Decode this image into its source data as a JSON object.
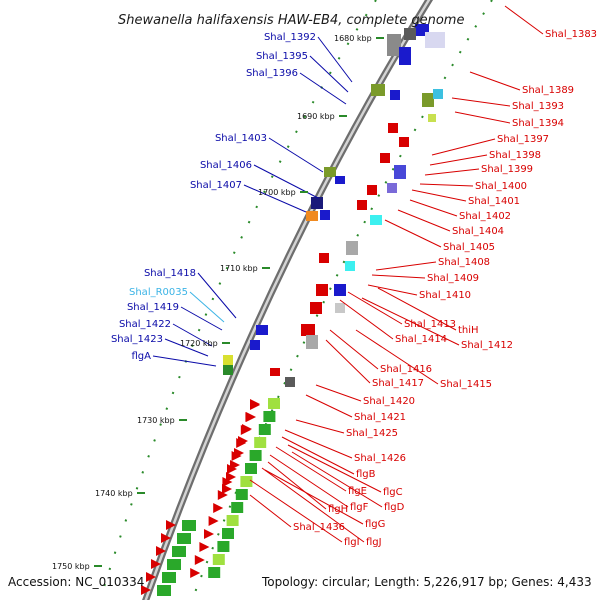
{
  "title": "Shewanella halifaxensis HAW-EB4, complete genome",
  "footer": {
    "accession": "Accession: NC_010334",
    "summary": "Topology: circular; Length: 5,226,917 bp; Genes: 4,433"
  },
  "colors": {
    "left_label": "#0a0aa8",
    "rna_label": "#3cb4e6",
    "right_label": "#d80000",
    "backbone": "#9a9a9a",
    "tick": "#2a8a2a"
  },
  "kbp_ticks": [
    "1680 kbp",
    "1690 kbp",
    "1700 kbp",
    "1710 kbp",
    "1720 kbp",
    "1730 kbp",
    "1740 kbp",
    "1750 kbp"
  ],
  "left_labels": [
    "Shal_1392",
    "Shal_1395",
    "Shal_1396",
    "Shal_1403",
    "Shal_1406",
    "Shal_1407",
    "Shal_1418",
    "Shal_R0035",
    "Shal_1419",
    "Shal_1422",
    "Shal_1423",
    "flgA"
  ],
  "right_labels": [
    "Shal_1383",
    "Shal_1389",
    "Shal_1393",
    "Shal_1394",
    "Shal_1397",
    "Shal_1398",
    "Shal_1399",
    "Shal_1400",
    "Shal_1401",
    "Shal_1402",
    "Shal_1404",
    "Shal_1405",
    "Shal_1408",
    "Shal_1409",
    "Shal_1410",
    "Shal_1413",
    "thiH",
    "Shal_1414",
    "Shal_1412",
    "Shal_1416",
    "Shal_1417",
    "Shal_1415",
    "Shal_1420",
    "Shal_1421",
    "Shal_1425",
    "Shal_1426",
    "flgB",
    "flgC",
    "flgE",
    "flgD",
    "flgH",
    "flgF",
    "flgG",
    "Shal_1436",
    "flgI",
    "flgJ"
  ]
}
